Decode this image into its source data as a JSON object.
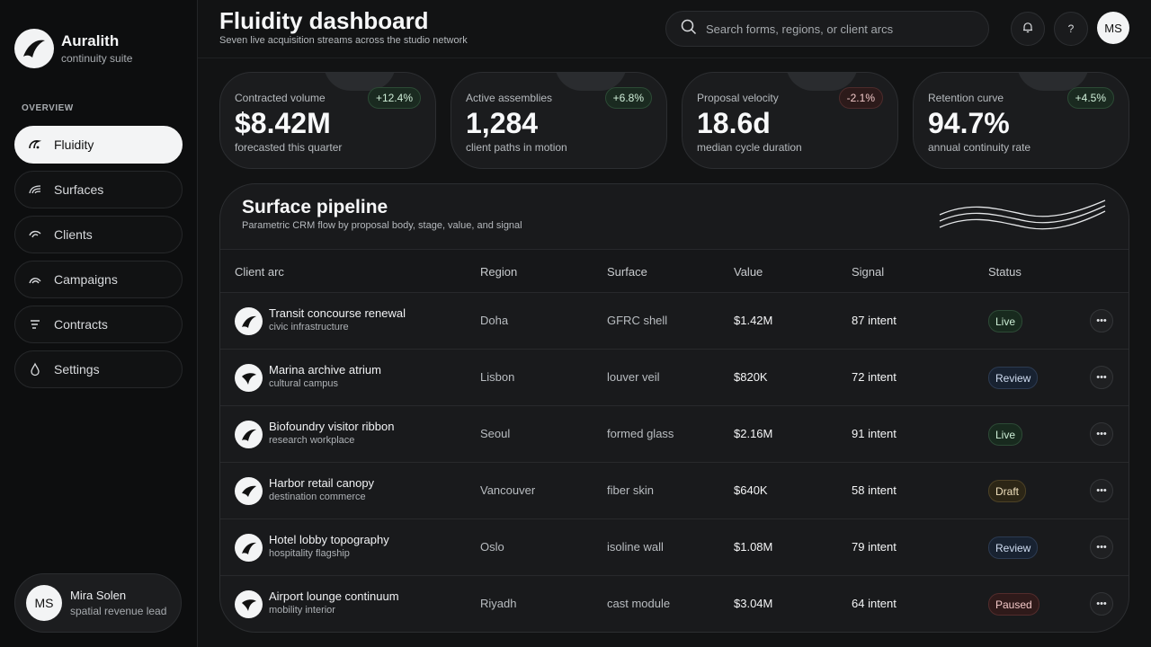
{
  "brand": {
    "name": "Auralith",
    "subtitle": "continuity suite"
  },
  "nav": {
    "section": "OVERVIEW",
    "items": [
      {
        "label": "Fluidity",
        "icon": "gauge-icon",
        "active": true
      },
      {
        "label": "Surfaces",
        "icon": "surface-wave-icon"
      },
      {
        "label": "Clients",
        "icon": "client-arc-icon"
      },
      {
        "label": "Campaigns",
        "icon": "campaign-arc-icon"
      },
      {
        "label": "Contracts",
        "icon": "list-lines-icon"
      },
      {
        "label": "Settings",
        "icon": "drop-icon"
      }
    ]
  },
  "user": {
    "initials": "MS",
    "name": "Mira Solen",
    "role": "spatial revenue lead"
  },
  "header": {
    "title": "Fluidity dashboard",
    "subtitle": "Seven live acquisition streams across the studio network",
    "search_placeholder": "Search forms, regions, or client arcs",
    "help_label": "?",
    "avatar_initials": "MS"
  },
  "kpis": [
    {
      "label": "Contracted volume",
      "value": "$8.42M",
      "note": "forecasted this quarter",
      "delta": "+12.4%",
      "trend": "up"
    },
    {
      "label": "Active assemblies",
      "value": "1,284",
      "note": "client paths in motion",
      "delta": "+6.8%",
      "trend": "up"
    },
    {
      "label": "Proposal velocity",
      "value": "18.6d",
      "note": "median cycle duration",
      "delta": "-2.1%",
      "trend": "down"
    },
    {
      "label": "Retention curve",
      "value": "94.7%",
      "note": "annual continuity rate",
      "delta": "+4.5%",
      "trend": "up"
    }
  ],
  "pipeline": {
    "title": "Surface pipeline",
    "subtitle": "Parametric CRM flow by proposal body, stage, value, and signal",
    "columns": [
      "Client arc",
      "Region",
      "Surface",
      "Value",
      "Signal",
      "Status"
    ],
    "rows": [
      {
        "name": "Transit concourse renewal",
        "sub": "civic infrastructure",
        "region": "Doha",
        "surface": "GFRC shell",
        "value": "$1.42M",
        "signal": "87 intent",
        "status": "Live"
      },
      {
        "name": "Marina archive atrium",
        "sub": "cultural campus",
        "region": "Lisbon",
        "surface": "louver veil",
        "value": "$820K",
        "signal": "72 intent",
        "status": "Review"
      },
      {
        "name": "Biofoundry visitor ribbon",
        "sub": "research workplace",
        "region": "Seoul",
        "surface": "formed glass",
        "value": "$2.16M",
        "signal": "91 intent",
        "status": "Live"
      },
      {
        "name": "Harbor retail canopy",
        "sub": "destination commerce",
        "region": "Vancouver",
        "surface": "fiber skin",
        "value": "$640K",
        "signal": "58 intent",
        "status": "Draft"
      },
      {
        "name": "Hotel lobby topography",
        "sub": "hospitality flagship",
        "region": "Oslo",
        "surface": "isoline wall",
        "value": "$1.08M",
        "signal": "79 intent",
        "status": "Review"
      },
      {
        "name": "Airport lounge continuum",
        "sub": "mobility interior",
        "region": "Riyadh",
        "surface": "cast module",
        "value": "$3.04M",
        "signal": "64 intent",
        "status": "Paused"
      }
    ]
  },
  "colors": {
    "background": "#121314",
    "sidebar": "#0d0e0f",
    "accent_light": "#f3f4f5",
    "live": "#cdeed6",
    "review": "#cfdcf0",
    "draft": "#efe0bd",
    "paused": "#f3c8c8"
  }
}
